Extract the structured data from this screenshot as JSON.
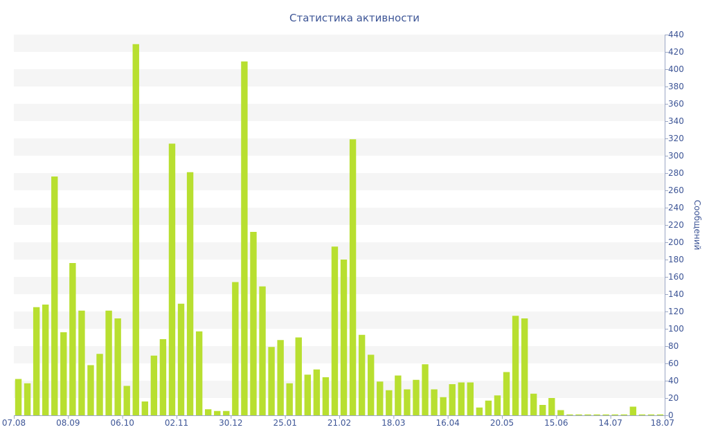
{
  "chart_data": {
    "type": "bar",
    "title": "Статистика активности",
    "ylabel": "Сообщений",
    "xlabel": "",
    "ylim": [
      0,
      440
    ],
    "y_ticks": [
      0,
      20,
      40,
      60,
      80,
      100,
      120,
      140,
      160,
      180,
      200,
      220,
      240,
      260,
      280,
      300,
      320,
      340,
      360,
      380,
      400,
      420,
      440
    ],
    "x_tick_labels": [
      {
        "index": 0,
        "label": "07.08"
      },
      {
        "index": 6,
        "label": "08.09"
      },
      {
        "index": 12,
        "label": "06.10"
      },
      {
        "index": 18,
        "label": "02.11"
      },
      {
        "index": 24,
        "label": "30.12"
      },
      {
        "index": 30,
        "label": "25.01"
      },
      {
        "index": 36,
        "label": "21.02"
      },
      {
        "index": 42,
        "label": "18.03"
      },
      {
        "index": 48,
        "label": "16.04"
      },
      {
        "index": 54,
        "label": "20.05"
      },
      {
        "index": 60,
        "label": "15.06"
      },
      {
        "index": 66,
        "label": "14.07"
      },
      {
        "index": 72,
        "label": "18.07"
      }
    ],
    "values": [
      42,
      37,
      125,
      128,
      276,
      96,
      176,
      121,
      58,
      71,
      121,
      112,
      34,
      429,
      16,
      69,
      88,
      314,
      129,
      281,
      97,
      7,
      5,
      5,
      154,
      409,
      212,
      149,
      79,
      87,
      37,
      90,
      47,
      53,
      44,
      195,
      180,
      319,
      93,
      70,
      39,
      29,
      46,
      30,
      41,
      59,
      30,
      21,
      36,
      38,
      38,
      9,
      17,
      23,
      50,
      115,
      112,
      25,
      12,
      20,
      6,
      1,
      1,
      1,
      1,
      1,
      1,
      1,
      10,
      1,
      1,
      1
    ],
    "grid": "alternating-bands",
    "y_axis_position": "right",
    "colors": {
      "bar": "#b8df30",
      "text": "#3d5596",
      "band": "#f5f5f5"
    }
  }
}
